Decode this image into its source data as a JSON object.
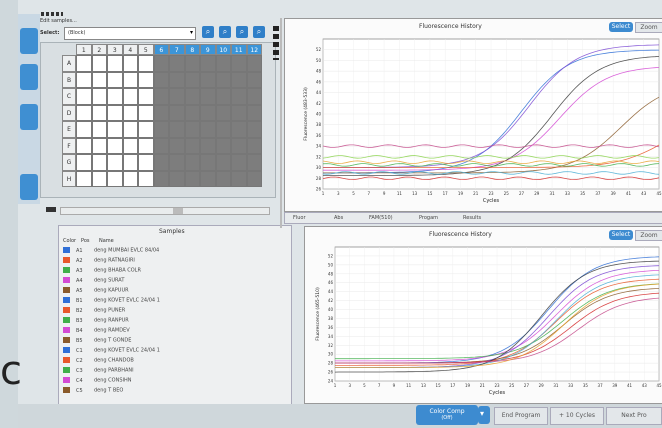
{
  "window": {
    "title": "Edit samples..."
  },
  "select": {
    "label": "Select:",
    "value": "(Block)"
  },
  "plate": {
    "columns": [
      "1",
      "2",
      "3",
      "4",
      "5",
      "6",
      "7",
      "8",
      "9",
      "10",
      "11",
      "12"
    ],
    "rows": [
      "A",
      "B",
      "C",
      "D",
      "E",
      "F",
      "G",
      "H"
    ],
    "filled_columns": 5
  },
  "samples_panel": {
    "title": "Samples",
    "headers": {
      "color": "Color",
      "pos": "Pos",
      "name": "Name"
    },
    "items": [
      {
        "color": "#2f6fd6",
        "pos": "A1",
        "name": "deng MUMBAI EVLC 84/04"
      },
      {
        "color": "#e8582a",
        "pos": "A2",
        "name": "deng RATNAGIRI"
      },
      {
        "color": "#3fae4a",
        "pos": "A3",
        "name": "deng BHABA COLR"
      },
      {
        "color": "#d44ad4",
        "pos": "A4",
        "name": "deng SURAT"
      },
      {
        "color": "#8a5a2a",
        "pos": "A5",
        "name": "deng KAPUUR"
      },
      {
        "color": "#2f6fd6",
        "pos": "B1",
        "name": "deng KOVET EVLC 24/04 1"
      },
      {
        "color": "#e8582a",
        "pos": "B2",
        "name": "deng PUNER"
      },
      {
        "color": "#3fae4a",
        "pos": "B3",
        "name": "deng RANPUR"
      },
      {
        "color": "#d44ad4",
        "pos": "B4",
        "name": "deng RAMDEV"
      },
      {
        "color": "#8a5a2a",
        "pos": "B5",
        "name": "deng T GONDE"
      },
      {
        "color": "#2f6fd6",
        "pos": "C1",
        "name": "deng KOVET EVLC 24/04 1"
      },
      {
        "color": "#e8582a",
        "pos": "C2",
        "name": "deng CHANDOB"
      },
      {
        "color": "#3fae4a",
        "pos": "C3",
        "name": "deng PARBHANI"
      },
      {
        "color": "#d44ad4",
        "pos": "C4",
        "name": "deng CONSIHN"
      },
      {
        "color": "#8a5a2a",
        "pos": "C5",
        "name": "deng T BEO"
      }
    ]
  },
  "chart_top": {
    "title": "Fluorescence History",
    "xlabel": "Cycles",
    "ylabel": "Fluorescence (483-533)",
    "select_label": "Select",
    "other_label": "Zoom"
  },
  "chart_bottom": {
    "title": "Fluorescence History",
    "xlabel": "Cycles",
    "ylabel": "Fluorescence (465-510)",
    "select_label": "Select",
    "other_label": "Zoom"
  },
  "filter_bar": {
    "items": [
      "Fluor",
      "Abs",
      "FAM(510)",
      "Progam",
      "Results"
    ]
  },
  "bottom_bar": {
    "color_comp": "Color Comp",
    "color_comp_sub": "(Off)",
    "end_program": "End Program",
    "add_cycles": "+ 10 Cycles",
    "next": "Next Pro"
  },
  "big_label": "c",
  "chart_data": [
    {
      "type": "line",
      "title": "Fluorescence History",
      "xlabel": "Cycles",
      "ylabel": "Fluorescence (483-533)",
      "x_ticks": [
        1,
        3,
        5,
        7,
        9,
        11,
        13,
        15,
        17,
        19,
        21,
        23,
        25,
        27,
        29,
        31,
        33,
        35,
        37,
        39,
        41,
        43,
        45
      ],
      "y_ticks": [
        26,
        28,
        30,
        32,
        34,
        36,
        38,
        40,
        42,
        44,
        46,
        48,
        50,
        52
      ],
      "xlim": [
        1,
        45
      ],
      "ylim": [
        26,
        54
      ],
      "series": [
        {
          "color": "#2f6fd6",
          "start": 21,
          "baseline": 29,
          "plateau": 52
        },
        {
          "color": "#7b4ad4",
          "start": 22,
          "baseline": 30,
          "plateau": 53
        },
        {
          "color": "#d44ad4",
          "start": 26,
          "baseline": 29.5,
          "plateau": 49
        },
        {
          "color": "#3a3a3a",
          "start": 25,
          "baseline": 28.5,
          "plateau": 51
        },
        {
          "color": "#8a5a2a",
          "start": 34,
          "baseline": 29,
          "plateau": 46
        },
        {
          "color": "#e8582a",
          "start": 40,
          "baseline": 30,
          "plateau": 40
        },
        {
          "color": "#3fae4a",
          "start": 0,
          "baseline": 30.5,
          "plateau": 30.5
        },
        {
          "color": "#e8a02a",
          "start": 0,
          "baseline": 31,
          "plateau": 31
        },
        {
          "color": "#c44a8a",
          "start": 0,
          "baseline": 34,
          "plateau": 34
        },
        {
          "color": "#4aaed4",
          "start": 0,
          "baseline": 29,
          "plateau": 29
        },
        {
          "color": "#8ad44a",
          "start": 0,
          "baseline": 32,
          "plateau": 32
        },
        {
          "color": "#d42a2a",
          "start": 0,
          "baseline": 28,
          "plateau": 28
        }
      ]
    },
    {
      "type": "line",
      "title": "Fluorescence History",
      "xlabel": "Cycles",
      "ylabel": "Fluorescence (465-510)",
      "x_ticks": [
        1,
        3,
        5,
        7,
        9,
        11,
        13,
        15,
        17,
        19,
        21,
        23,
        25,
        27,
        29,
        31,
        33,
        35,
        37,
        39,
        41,
        43,
        45
      ],
      "y_ticks": [
        24,
        26,
        28,
        30,
        32,
        34,
        36,
        38,
        40,
        42,
        44,
        46,
        48,
        50,
        52
      ],
      "xlim": [
        1,
        45
      ],
      "ylim": [
        24,
        54
      ],
      "series": [
        {
          "color": "#2f6fd6",
          "start": 24,
          "baseline": 28,
          "plateau": 52
        },
        {
          "color": "#d44ad4",
          "start": 25,
          "baseline": 28.5,
          "plateau": 49
        },
        {
          "color": "#e8582a",
          "start": 25,
          "baseline": 27.5,
          "plateau": 47
        },
        {
          "color": "#3fae4a",
          "start": 26,
          "baseline": 29,
          "plateau": 46
        },
        {
          "color": "#8a5a2a",
          "start": 26,
          "baseline": 28,
          "plateau": 45
        },
        {
          "color": "#7b4ad4",
          "start": 24,
          "baseline": 27,
          "plateau": 50
        },
        {
          "color": "#d42a2a",
          "start": 27,
          "baseline": 28,
          "plateau": 44
        },
        {
          "color": "#4aaed4",
          "start": 25,
          "baseline": 27,
          "plateau": 48
        },
        {
          "color": "#3a3a3a",
          "start": 23,
          "baseline": 26,
          "plateau": 51
        },
        {
          "color": "#c44a8a",
          "start": 28,
          "baseline": 28,
          "plateau": 43
        },
        {
          "color": "#e8a02a",
          "start": 26,
          "baseline": 27,
          "plateau": 46
        }
      ]
    }
  ]
}
